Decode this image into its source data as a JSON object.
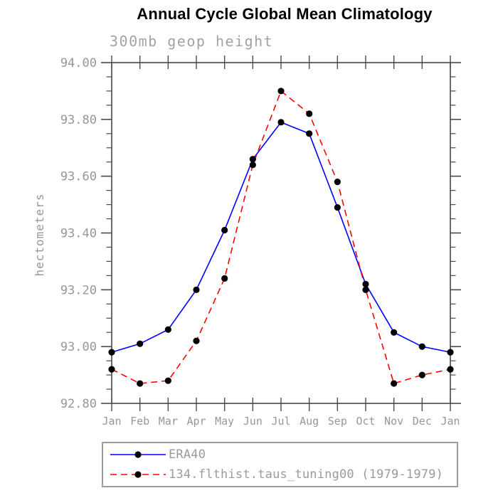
{
  "chart_data": {
    "type": "line",
    "title": "Annual Cycle Global Mean Climatology",
    "subtitle": "300mb geop height",
    "ylabel": "hectometers",
    "xlabel": "",
    "categories": [
      "Jan",
      "Feb",
      "Mar",
      "Apr",
      "May",
      "Jun",
      "Jul",
      "Aug",
      "Sep",
      "Oct",
      "Nov",
      "Dec",
      "Jan"
    ],
    "ylim": [
      92.8,
      94.0
    ],
    "ytick_step": 0.2,
    "ytick_minor_step": 0.05,
    "ytick_labels": [
      "94.00",
      "93.80",
      "93.60",
      "93.40",
      "93.20",
      "93.00",
      "92.80"
    ],
    "grid": false,
    "legend_position": "bottom-left",
    "marker": "filled-black-circle",
    "marker_color": "#000000",
    "series": [
      {
        "name": "ERA40",
        "color": "#0000ff",
        "line_style": "solid",
        "values": [
          92.98,
          93.01,
          93.06,
          93.2,
          93.41,
          93.66,
          93.79,
          93.75,
          93.49,
          93.22,
          93.05,
          93.0,
          92.98
        ]
      },
      {
        "name": "134.flthist.taus_tuning00 (1979-1979)",
        "color": "#ff0000",
        "line_style": "dashed",
        "values": [
          92.92,
          92.87,
          92.88,
          93.02,
          93.24,
          93.64,
          93.9,
          93.82,
          93.58,
          93.2,
          92.87,
          92.9,
          92.92
        ]
      }
    ]
  },
  "colors": {
    "axis": "#3a3a3a",
    "tick": "#4a4a4a",
    "label_gray": "#979797",
    "legend_border": "#9b9b9b",
    "background": "#ffffff"
  }
}
